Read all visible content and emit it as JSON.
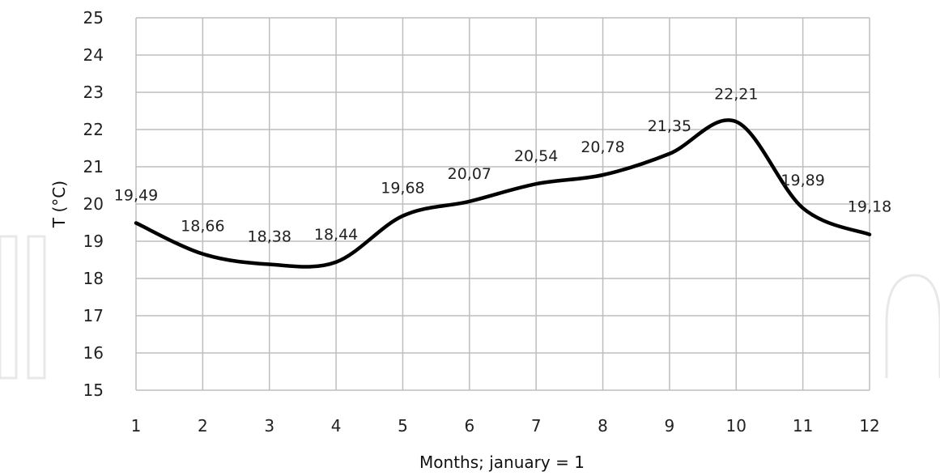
{
  "chart_data": {
    "type": "line",
    "xlabel": "Months; january = 1",
    "ylabel": "T (°C)",
    "x": [
      1,
      2,
      3,
      4,
      5,
      6,
      7,
      8,
      9,
      10,
      11,
      12
    ],
    "xlim": [
      1,
      12
    ],
    "ylim": [
      15,
      25
    ],
    "yticks": [
      15,
      16,
      17,
      18,
      19,
      20,
      21,
      22,
      23,
      24,
      25
    ],
    "grid": true,
    "series": [
      {
        "values": [
          19.49,
          18.66,
          18.38,
          18.44,
          19.68,
          20.07,
          20.54,
          20.78,
          21.35,
          22.21,
          19.89,
          19.18
        ],
        "labels": [
          "19,49",
          "18,66",
          "18,38",
          "18,44",
          "19,68",
          "20,07",
          "20,54",
          "20,78",
          "21,35",
          "22,21",
          "19,89",
          "19,18"
        ],
        "color": "#000000"
      }
    ]
  }
}
